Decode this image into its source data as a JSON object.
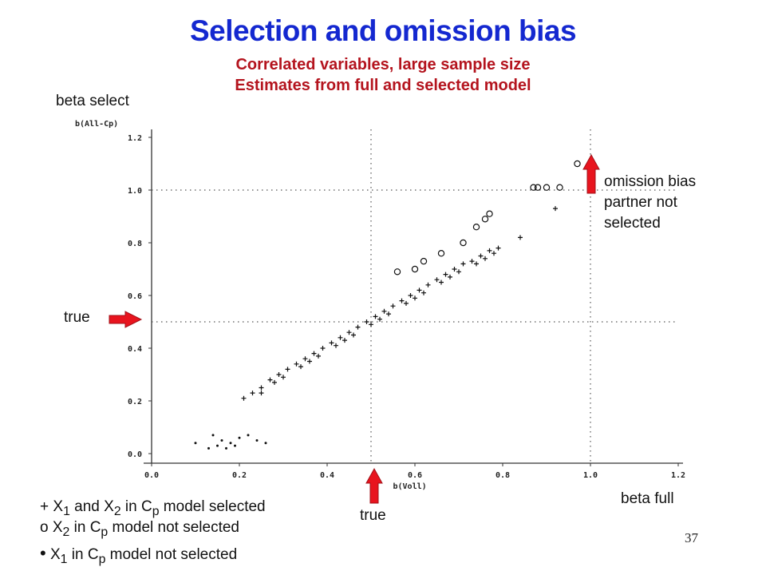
{
  "title": "Selection and omission bias",
  "subtitle_1": "Correlated variables, large sample size",
  "subtitle_2": "Estimates from full and selected model",
  "labels": {
    "beta_select": "beta select",
    "beta_full": "beta full",
    "true_left": "true",
    "true_bottom": "true",
    "omission_1": "omission bias",
    "omission_2": "partner not",
    "omission_3": "selected"
  },
  "legend": {
    "plus_sym": "+",
    "plus_a": "X",
    "plus_b": "1",
    "plus_c": " and X",
    "plus_d": "2",
    "plus_e": " in C",
    "plus_f": "p",
    "plus_g": " model selected",
    "circ_sym": "o",
    "circ_a": " X",
    "circ_b": "2",
    "circ_c": " in C",
    "circ_d": "p",
    "circ_e": " model not selected",
    "dot_sym": "•",
    "dot_a": "X",
    "dot_b": "1",
    "dot_c": " in C",
    "dot_d": "p",
    "dot_e": " model not selected"
  },
  "page_number": "37",
  "colors": {
    "title": "#1428d0",
    "subtitle": "#b4141e",
    "arrow": "#e8141e"
  },
  "chart_data": {
    "type": "scatter",
    "xlabel": "b(Voll)",
    "ylabel": "b(All-Cp)",
    "xlim": [
      0,
      1.2
    ],
    "ylim": [
      0,
      1.2
    ],
    "xticks": [
      "0.0",
      "0.2",
      "0.4",
      "0.6",
      "0.8",
      "1.0",
      "1.2"
    ],
    "yticks": [
      "0.0",
      "0.2",
      "0.4",
      "0.6",
      "0.8",
      "1.0",
      "1.2"
    ],
    "reference_lines": {
      "x": [
        0.5,
        1.0
      ],
      "y": [
        0.5,
        1.0
      ]
    },
    "series": [
      {
        "marker": "plus",
        "x": [
          0.21,
          0.23,
          0.25,
          0.27,
          0.29,
          0.31,
          0.33,
          0.35,
          0.37,
          0.39,
          0.41,
          0.43,
          0.45,
          0.47,
          0.49,
          0.51,
          0.53,
          0.55,
          0.57,
          0.59,
          0.61,
          0.63,
          0.65,
          0.67,
          0.69,
          0.71,
          0.73,
          0.75,
          0.77,
          0.79,
          0.84,
          0.92,
          0.25,
          0.3,
          0.34,
          0.38,
          0.42,
          0.46,
          0.5,
          0.54,
          0.58,
          0.62,
          0.66,
          0.7,
          0.74,
          0.78,
          0.28,
          0.36,
          0.44,
          0.52,
          0.6,
          0.68,
          0.76
        ],
        "y": [
          0.21,
          0.23,
          0.25,
          0.28,
          0.3,
          0.32,
          0.34,
          0.36,
          0.38,
          0.4,
          0.42,
          0.44,
          0.46,
          0.48,
          0.5,
          0.52,
          0.54,
          0.56,
          0.58,
          0.6,
          0.62,
          0.64,
          0.66,
          0.68,
          0.7,
          0.72,
          0.73,
          0.75,
          0.77,
          0.78,
          0.82,
          0.93,
          0.23,
          0.29,
          0.33,
          0.37,
          0.41,
          0.45,
          0.49,
          0.53,
          0.57,
          0.61,
          0.65,
          0.69,
          0.72,
          0.76,
          0.27,
          0.35,
          0.43,
          0.51,
          0.59,
          0.67,
          0.74
        ]
      },
      {
        "marker": "circle",
        "x": [
          0.56,
          0.6,
          0.62,
          0.66,
          0.71,
          0.74,
          0.76,
          0.77,
          0.87,
          0.88,
          0.9,
          0.93,
          0.97
        ],
        "y": [
          0.69,
          0.7,
          0.73,
          0.76,
          0.8,
          0.86,
          0.89,
          0.91,
          1.01,
          1.01,
          1.01,
          1.01,
          1.1
        ]
      },
      {
        "marker": "dot",
        "x": [
          0.1,
          0.13,
          0.14,
          0.15,
          0.16,
          0.17,
          0.18,
          0.19,
          0.2,
          0.22,
          0.24,
          0.26
        ],
        "y": [
          0.04,
          0.02,
          0.07,
          0.03,
          0.05,
          0.02,
          0.04,
          0.03,
          0.06,
          0.07,
          0.05,
          0.04
        ]
      }
    ]
  }
}
